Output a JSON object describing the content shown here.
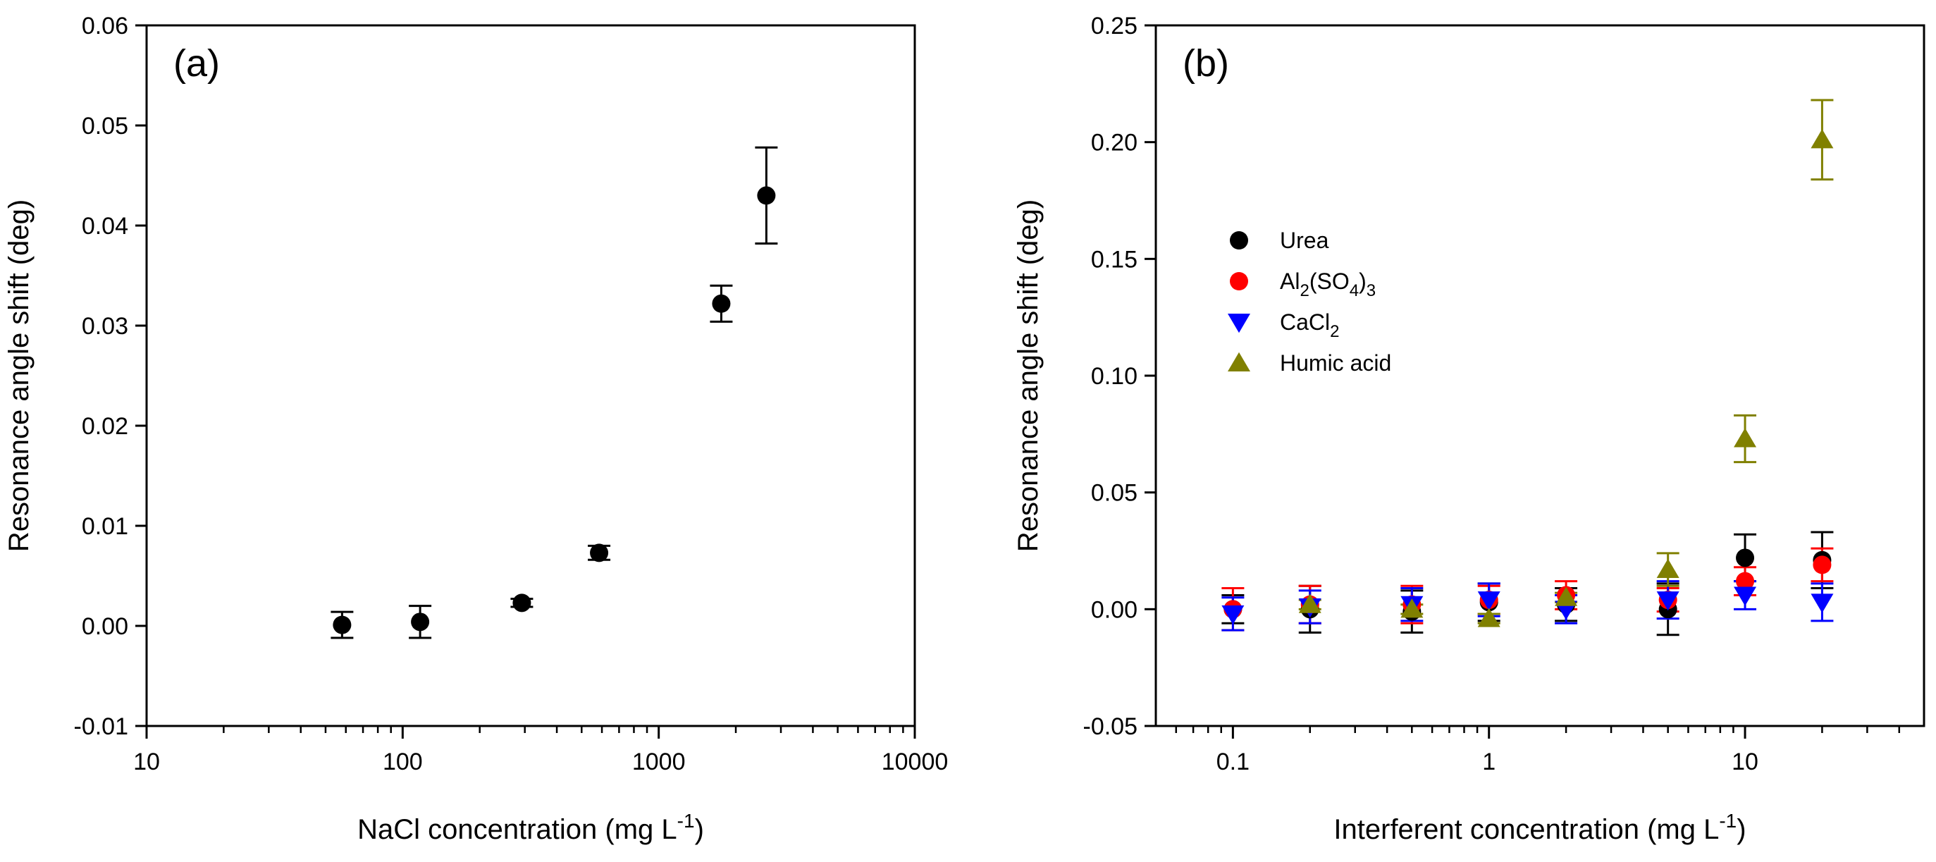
{
  "chart_data": [
    {
      "type": "scatter",
      "panel_label": "(a)",
      "xlabel": "NaCl concentration (mg L",
      "xlabel_sup": "-1",
      "xlabel_end": ")",
      "ylabel": "Resonance angle shift (deg)",
      "xscale": "log",
      "xlim": [
        10,
        10000
      ],
      "ylim": [
        -0.01,
        0.06
      ],
      "x_ticks": [
        10,
        100,
        1000,
        10000
      ],
      "x_tick_labels": [
        "10",
        "100",
        "1000",
        "10000"
      ],
      "y_ticks": [
        -0.01,
        0,
        0.01,
        0.02,
        0.03,
        0.04,
        0.05,
        0.06
      ],
      "y_tick_labels": [
        "-0.01",
        "0.00",
        "0.01",
        "0.02",
        "0.03",
        "0.04",
        "0.05",
        "0.06"
      ],
      "series": [
        {
          "name": "NaCl",
          "color": "#000000",
          "marker": "circle",
          "x": [
            58,
            117,
            292,
            585,
            1755,
            2632
          ],
          "y": [
            0.0001,
            0.0004,
            0.0023,
            0.0073,
            0.0322,
            0.043
          ],
          "err": [
            0.0013,
            0.0016,
            0.0004,
            0.0007,
            0.0018,
            0.0048
          ]
        }
      ]
    },
    {
      "type": "scatter",
      "panel_label": "(b)",
      "xlabel": "Interferent concentration (mg L",
      "xlabel_sup": "-1",
      "xlabel_end": ")",
      "ylabel": "Resonance angle shift (deg)",
      "xscale": "log",
      "xlim": [
        0.05,
        50
      ],
      "ylim": [
        -0.05,
        0.25
      ],
      "x_ticks": [
        0.1,
        1,
        10
      ],
      "x_tick_labels": [
        "0.1",
        "1",
        "10"
      ],
      "y_ticks": [
        -0.05,
        0,
        0.05,
        0.1,
        0.15,
        0.2,
        0.25
      ],
      "y_tick_labels": [
        "-0.05",
        "0.00",
        "0.05",
        "0.10",
        "0.15",
        "0.20",
        "0.25"
      ],
      "legend_position": "upper-left",
      "series": [
        {
          "name": "Urea",
          "color": "#000000",
          "marker": "circle",
          "x": [
            0.1,
            0.2,
            0.5,
            1,
            2,
            5,
            10,
            20
          ],
          "y": [
            0.0,
            0.0,
            -0.001,
            0.003,
            0.002,
            0.0,
            0.022,
            0.021
          ],
          "err": [
            0.006,
            0.01,
            0.009,
            0.008,
            0.007,
            0.011,
            0.01,
            0.012
          ]
        },
        {
          "name": "Al2(SO4)3",
          "legend_parts": [
            "Al",
            "2",
            "(SO",
            "4",
            ")",
            "3"
          ],
          "color": "#ff0000",
          "marker": "circle",
          "x": [
            0.1,
            0.2,
            0.5,
            1,
            2,
            5,
            10,
            20
          ],
          "y": [
            0.0,
            0.002,
            0.002,
            0.004,
            0.006,
            0.004,
            0.012,
            0.019
          ],
          "err": [
            0.009,
            0.008,
            0.008,
            0.006,
            0.006,
            0.005,
            0.006,
            0.007
          ]
        },
        {
          "name": "CaCl2",
          "legend_parts": [
            "CaCl",
            "2"
          ],
          "color": "#0000ff",
          "marker": "triangle-down",
          "x": [
            0.1,
            0.2,
            0.5,
            1,
            2,
            5,
            10,
            20
          ],
          "y": [
            -0.002,
            0.001,
            0.002,
            0.004,
            0.0,
            0.004,
            0.006,
            0.003
          ],
          "err": [
            0.007,
            0.007,
            0.007,
            0.007,
            0.006,
            0.008,
            0.006,
            0.008
          ]
        },
        {
          "name": "Humic acid",
          "color": "#808000",
          "marker": "triangle-up",
          "x": [
            0.2,
            0.5,
            1,
            2,
            5,
            10,
            20
          ],
          "y": [
            0.002,
            0.0,
            -0.004,
            0.005,
            0.017,
            0.073,
            0.201
          ],
          "err": [
            0.002,
            0.002,
            0.002,
            0.002,
            0.007,
            0.01,
            0.017
          ]
        }
      ]
    }
  ]
}
